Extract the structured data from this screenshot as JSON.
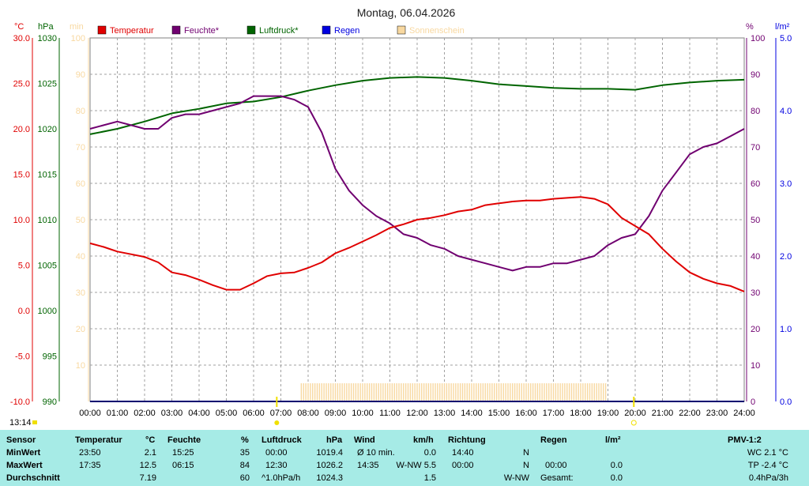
{
  "header": {
    "title": "Montag, 06.04.2026",
    "unit_temp": "°C",
    "unit_pressure": "hPa",
    "unit_sun": "min",
    "unit_humidity": "%",
    "unit_rain": "l/m²",
    "time_marker": "13:14"
  },
  "colors": {
    "temperature": "#e00000",
    "humidity": "#700070",
    "pressure": "#006400",
    "rain": "#0000e0",
    "sunshine": "#f8d8a0",
    "grid": "#a0a0a0",
    "stats_bg": "#a6ebe6"
  },
  "chart_data": {
    "type": "line",
    "title": "Montag, 06.04.2026",
    "legend_position": "top",
    "grid": true,
    "x_ticks": [
      "00:00",
      "01:00",
      "02:00",
      "03:00",
      "04:00",
      "05:00",
      "06:00",
      "07:00",
      "08:00",
      "09:00",
      "10:00",
      "11:00",
      "12:00",
      "13:00",
      "14:00",
      "15:00",
      "16:00",
      "17:00",
      "18:00",
      "19:00",
      "20:00",
      "21:00",
      "22:00",
      "23:00",
      "24:00"
    ],
    "axes": {
      "temperature": {
        "min": -10,
        "max": 30,
        "ticks": [
          "30.0",
          "25.0",
          "20.0",
          "15.0",
          "10.0",
          "5.0",
          "0.0",
          "-5.0",
          "-10.0"
        ]
      },
      "pressure": {
        "min": 990,
        "max": 1030,
        "ticks": [
          "1030",
          "1025",
          "1020",
          "1015",
          "1010",
          "1005",
          "1000",
          "995",
          "990"
        ]
      },
      "sunshine": {
        "min": 0,
        "max": 100,
        "ticks": [
          "100",
          "90",
          "80",
          "70",
          "60",
          "50",
          "40",
          "30",
          "20",
          "10"
        ]
      },
      "humidity": {
        "min": 0,
        "max": 100,
        "ticks": [
          "100",
          "90",
          "80",
          "70",
          "60",
          "50",
          "40",
          "30",
          "20",
          "10",
          "0"
        ]
      },
      "rain": {
        "min": 0,
        "max": 5,
        "ticks": [
          "5.0",
          "4.0",
          "3.0",
          "2.0",
          "1.0",
          "0.0"
        ]
      }
    },
    "series": [
      {
        "key": "temperature",
        "name": "Temperatur",
        "x": [
          0,
          0.5,
          1,
          1.5,
          2,
          2.5,
          3,
          3.5,
          4,
          4.5,
          5,
          5.5,
          6,
          6.5,
          7,
          7.5,
          8,
          8.5,
          9,
          9.5,
          10,
          10.5,
          11,
          11.5,
          12,
          12.5,
          13,
          13.5,
          14,
          14.5,
          15,
          15.5,
          16,
          16.5,
          17,
          17.5,
          18,
          18.5,
          19,
          19.5,
          20,
          20.5,
          21,
          21.5,
          22,
          22.5,
          23,
          23.5,
          24
        ],
        "values": [
          7.4,
          7.0,
          6.5,
          6.2,
          5.9,
          5.3,
          4.2,
          3.9,
          3.4,
          2.8,
          2.3,
          2.3,
          3.0,
          3.8,
          4.1,
          4.2,
          4.7,
          5.3,
          6.3,
          6.9,
          7.6,
          8.3,
          9.1,
          9.5,
          10.0,
          10.2,
          10.5,
          10.9,
          11.1,
          11.6,
          11.8,
          12.0,
          12.1,
          12.1,
          12.3,
          12.4,
          12.5,
          12.3,
          11.7,
          10.2,
          9.3,
          8.4,
          6.8,
          5.4,
          4.2,
          3.5,
          3.0,
          2.7,
          2.1
        ]
      },
      {
        "key": "humidity",
        "name": "Feuchte*",
        "x": [
          0,
          0.5,
          1,
          1.5,
          2,
          2.5,
          3,
          3.5,
          4,
          4.5,
          5,
          5.5,
          6,
          6.5,
          7,
          7.5,
          8,
          8.5,
          9,
          9.5,
          10,
          10.5,
          11,
          11.5,
          12,
          12.5,
          13,
          13.5,
          14,
          14.5,
          15,
          15.5,
          16,
          16.5,
          17,
          17.5,
          18,
          18.5,
          19,
          19.5,
          20,
          20.5,
          21,
          21.5,
          22,
          22.5,
          23,
          23.5,
          24
        ],
        "values": [
          75,
          76,
          77,
          76,
          75,
          75,
          78,
          79,
          79,
          80,
          81,
          82,
          84,
          84,
          84,
          83,
          81,
          74,
          64,
          58,
          54,
          51,
          49,
          46,
          45,
          43,
          42,
          40,
          39,
          38,
          37,
          36,
          37,
          37,
          38,
          38,
          39,
          40,
          43,
          45,
          46,
          51,
          58,
          63,
          68,
          70,
          71,
          73,
          75
        ]
      },
      {
        "key": "pressure",
        "name": "Luftdruck*",
        "x": [
          0,
          1,
          2,
          3,
          4,
          5,
          6,
          7,
          8,
          9,
          10,
          11,
          12,
          13,
          14,
          15,
          16,
          17,
          18,
          19,
          20,
          21,
          22,
          23,
          24
        ],
        "values": [
          1019.4,
          1020.0,
          1020.8,
          1021.7,
          1022.2,
          1022.8,
          1023.0,
          1023.5,
          1024.2,
          1024.8,
          1025.3,
          1025.6,
          1025.7,
          1025.6,
          1025.3,
          1024.9,
          1024.7,
          1024.5,
          1024.4,
          1024.4,
          1024.3,
          1024.8,
          1025.1,
          1025.3,
          1025.4
        ]
      },
      {
        "key": "rain",
        "name": "Regen",
        "x": [
          0,
          24
        ],
        "values": [
          0,
          0
        ]
      },
      {
        "key": "sunshine",
        "name": "Sonnenschein",
        "start": 7.75,
        "end": 19.0,
        "values_level": 5
      }
    ]
  },
  "stats": {
    "headers": {
      "sensor": "Sensor",
      "temp": "Temperatur",
      "temp_unit": "°C",
      "hum": "Feuchte",
      "hum_unit": "%",
      "press": "Luftdruck",
      "press_unit": "hPa",
      "wind": "Wind",
      "wind_unit": "km/h",
      "dir": "Richtung",
      "rain": "Regen",
      "rain_unit": "l/m²",
      "pmv": "PMV-1:2"
    },
    "rows": [
      {
        "label": "MinWert",
        "temp_time": "23:50",
        "temp_val": "2.1",
        "hum_time": "15:25",
        "hum_val": "35",
        "press_time": "00:00",
        "press_val": "1019.4",
        "wind_time": "Ø 10 min.",
        "wind_val": "0.0",
        "dir_time": "14:40",
        "dir_val": "N",
        "rain_time": "",
        "rain_val": "",
        "pmv": "WC 2.1 °C"
      },
      {
        "label": "MaxWert",
        "temp_time": "17:35",
        "temp_val": "12.5",
        "hum_time": "06:15",
        "hum_val": "84",
        "press_time": "12:30",
        "press_val": "1026.2",
        "wind_time": "14:35",
        "wind_val": "W-NW 5.5",
        "dir_time": "00:00",
        "dir_val": "N",
        "rain_time": "00:00",
        "rain_val": "0.0",
        "pmv": "TP -2.4 °C"
      },
      {
        "label": "Durchschnitt",
        "temp_time": "",
        "temp_val": "7.19",
        "hum_time": "",
        "hum_val": "60",
        "press_time": "^1.0hPa/h",
        "press_val": "1024.3",
        "wind_time": "",
        "wind_val": "1.5",
        "dir_time": "",
        "dir_val": "W-NW",
        "rain_time": "Gesamt:",
        "rain_val": "0.0",
        "pmv": "0.4hPa/3h"
      }
    ]
  }
}
